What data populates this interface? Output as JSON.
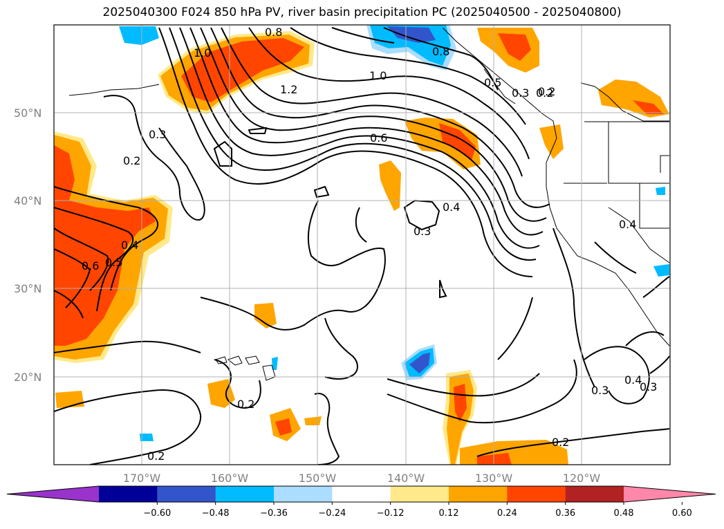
{
  "title": "2025040300 F024 850 hPa PV, river basin precipitation PC (2025040500 - 2025040800)",
  "map": {
    "lon_range": [
      -180,
      -110
    ],
    "lat_range": [
      10,
      60
    ],
    "gridlines": true,
    "lat_labels": [
      "50°N",
      "40°N",
      "30°N",
      "20°N"
    ],
    "lon_labels": [
      "170°W",
      "160°W",
      "150°W",
      "140°W",
      "130°W",
      "120°W"
    ]
  },
  "colorbar": {
    "orientation": "horizontal",
    "extend": "both",
    "colors": [
      "#9933cc",
      "#000099",
      "#3355cc",
      "#00bbff",
      "#aaddff",
      "#ffffff",
      "#ffe98a",
      "#ffa500",
      "#ff4500",
      "#b22222",
      "#ff88aa"
    ],
    "tick_labels": [
      "−0.60",
      "−0.48",
      "−0.36",
      "−0.24",
      "−0.12",
      "0.12",
      "0.24",
      "0.36",
      "0.48",
      "0.60"
    ]
  },
  "contour_labels": [
    "1.0",
    "0.8",
    "1.0",
    "1.2",
    "0.8",
    "0.3",
    "0.2",
    "0.6",
    "0.4",
    "0.3",
    "0.5",
    "0.3",
    "0.2",
    "0.4",
    "0.6",
    "0.5",
    "0.4",
    "0.2",
    "0.2",
    "0.2",
    "0.3",
    "0.4",
    "0.3",
    "0.2"
  ]
}
